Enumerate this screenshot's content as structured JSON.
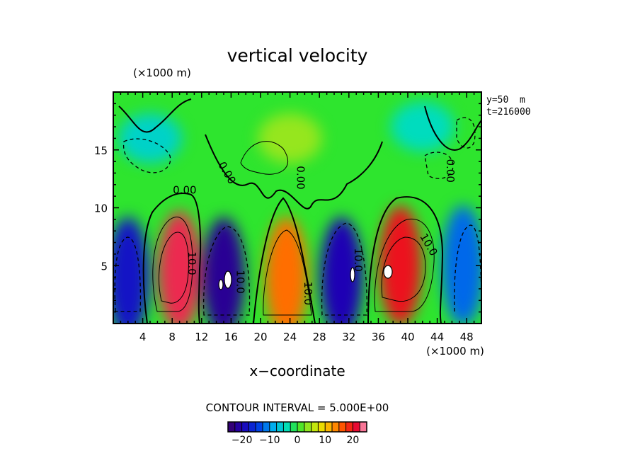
{
  "chart_data": {
    "type": "heatmap",
    "subtype": "filled-contour",
    "title": "vertical velocity",
    "xlabel": "x−coordinate",
    "x_unit": "(×1000 m)",
    "y_unit": "(×1000 m)",
    "xlim": [
      0,
      50
    ],
    "ylim": [
      0,
      20
    ],
    "x_ticks": [
      4,
      8,
      12,
      16,
      20,
      24,
      28,
      32,
      36,
      40,
      44,
      48
    ],
    "y_ticks": [
      5,
      10,
      15
    ],
    "annotations": [
      "y=50  m",
      "t=216000"
    ],
    "contour_interval_text": "CONTOUR INTERVAL = 5.000E+00",
    "contour_labels": [
      {
        "text": "0.00",
        "x": 9.7,
        "y": 11.5,
        "rotate": 0
      },
      {
        "text": "0.00",
        "x": 15.4,
        "y": 13.0,
        "rotate": 60
      },
      {
        "text": "0.00",
        "x": 25.4,
        "y": 12.6,
        "rotate": 90
      },
      {
        "text": "0.00",
        "x": 45.7,
        "y": 13.2,
        "rotate": 90
      },
      {
        "text": "10.0",
        "x": 10.6,
        "y": 5.2,
        "rotate": 90
      },
      {
        "text": "10.0",
        "x": 17.2,
        "y": 3.6,
        "rotate": 90
      },
      {
        "text": "10.0",
        "x": 26.4,
        "y": 2.6,
        "rotate": 90
      },
      {
        "text": "10.0",
        "x": 33.2,
        "y": 5.5,
        "rotate": 90
      },
      {
        "text": "10.0",
        "x": 42.8,
        "y": 6.8,
        "rotate": 60
      }
    ],
    "colorbar": {
      "min": -25,
      "max": 25,
      "tick_values": [
        -20,
        -10,
        0,
        10,
        20
      ],
      "tick_labels": [
        "−20",
        "−10",
        "0",
        "10",
        "20"
      ]
    },
    "cells": [
      {
        "x": 2.0,
        "y": 4.0,
        "value": -18
      },
      {
        "x": 9.0,
        "y": 4.5,
        "value": 22
      },
      {
        "x": 15.0,
        "y": 4.0,
        "value": -22
      },
      {
        "x": 23.5,
        "y": 4.0,
        "value": 15
      },
      {
        "x": 31.0,
        "y": 4.0,
        "value": -20
      },
      {
        "x": 39.0,
        "y": 5.0,
        "value": 20
      },
      {
        "x": 47.5,
        "y": 5.0,
        "value": -12
      },
      {
        "x": 5.0,
        "y": 16.0,
        "value": -5
      },
      {
        "x": 24.0,
        "y": 16.0,
        "value": 4
      },
      {
        "x": 42.0,
        "y": 17.0,
        "value": -4
      }
    ]
  }
}
